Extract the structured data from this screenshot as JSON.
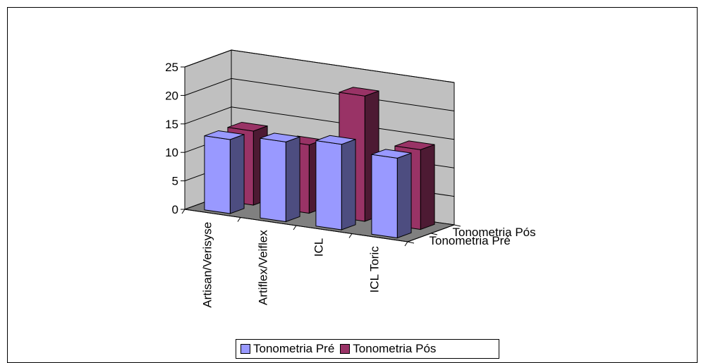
{
  "chart_data": {
    "type": "bar",
    "categories": [
      "Artisan/Verisyse",
      "Artiflex/Veiflex",
      "ICL",
      "ICL Toric"
    ],
    "series": [
      {
        "name": "Tonometria Pré",
        "values": [
          13,
          14,
          15,
          14
        ],
        "color": "#9999FF"
      },
      {
        "name": "Tonometria Pós",
        "values": [
          13,
          12,
          22,
          14
        ],
        "color": "#993366"
      }
    ],
    "ylim": [
      0,
      25
    ],
    "yticks": [
      0,
      5,
      10,
      15,
      20,
      25
    ],
    "depth_labels": [
      "Tonometria Pós",
      "Tonometria Pré"
    ],
    "legend_position": "bottom",
    "grid": true,
    "wall_color": "#C0C0C0",
    "floor_color": "#808080"
  }
}
